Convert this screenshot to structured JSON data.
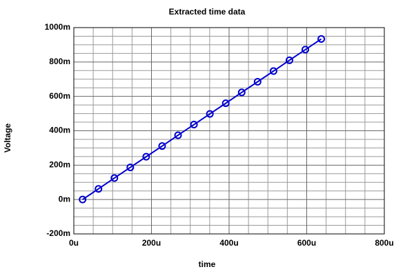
{
  "chart_data": {
    "type": "line",
    "title": "Extracted time data",
    "x_label": "time",
    "y_label": "Voltage",
    "x": [
      22.5,
      63.5,
      104.5,
      145.5,
      186.5,
      227.5,
      268.5,
      309.5,
      350.5,
      391.5,
      432.5,
      473.5,
      514.5,
      555.5,
      596.5,
      637.5
    ],
    "series": [
      {
        "color": "#0000cc",
        "values": [
          0,
          62,
          125,
          187,
          249,
          311,
          374,
          436,
          498,
          560,
          623,
          685,
          747,
          810,
          872,
          934
        ]
      }
    ],
    "xlim": [
      0,
      800
    ],
    "xticks": [
      {
        "value": 0,
        "label": "0u"
      },
      {
        "value": 200,
        "label": "200u"
      },
      {
        "value": 400,
        "label": "400u"
      },
      {
        "value": 600,
        "label": "600u"
      },
      {
        "value": 800,
        "label": "800u"
      }
    ],
    "ylim": [
      -200,
      1000
    ],
    "yticks": [
      {
        "value": -200,
        "label": "-200m"
      },
      {
        "value": 0,
        "label": "0m"
      },
      {
        "value": 200,
        "label": "200m"
      },
      {
        "value": 400,
        "label": "400m"
      },
      {
        "value": 600,
        "label": "600m"
      },
      {
        "value": 800,
        "label": "800m"
      },
      {
        "value": 1000,
        "label": "1000m"
      }
    ],
    "grid": true,
    "minor_grid_divisions": 4,
    "markers": "hollow-circle"
  }
}
